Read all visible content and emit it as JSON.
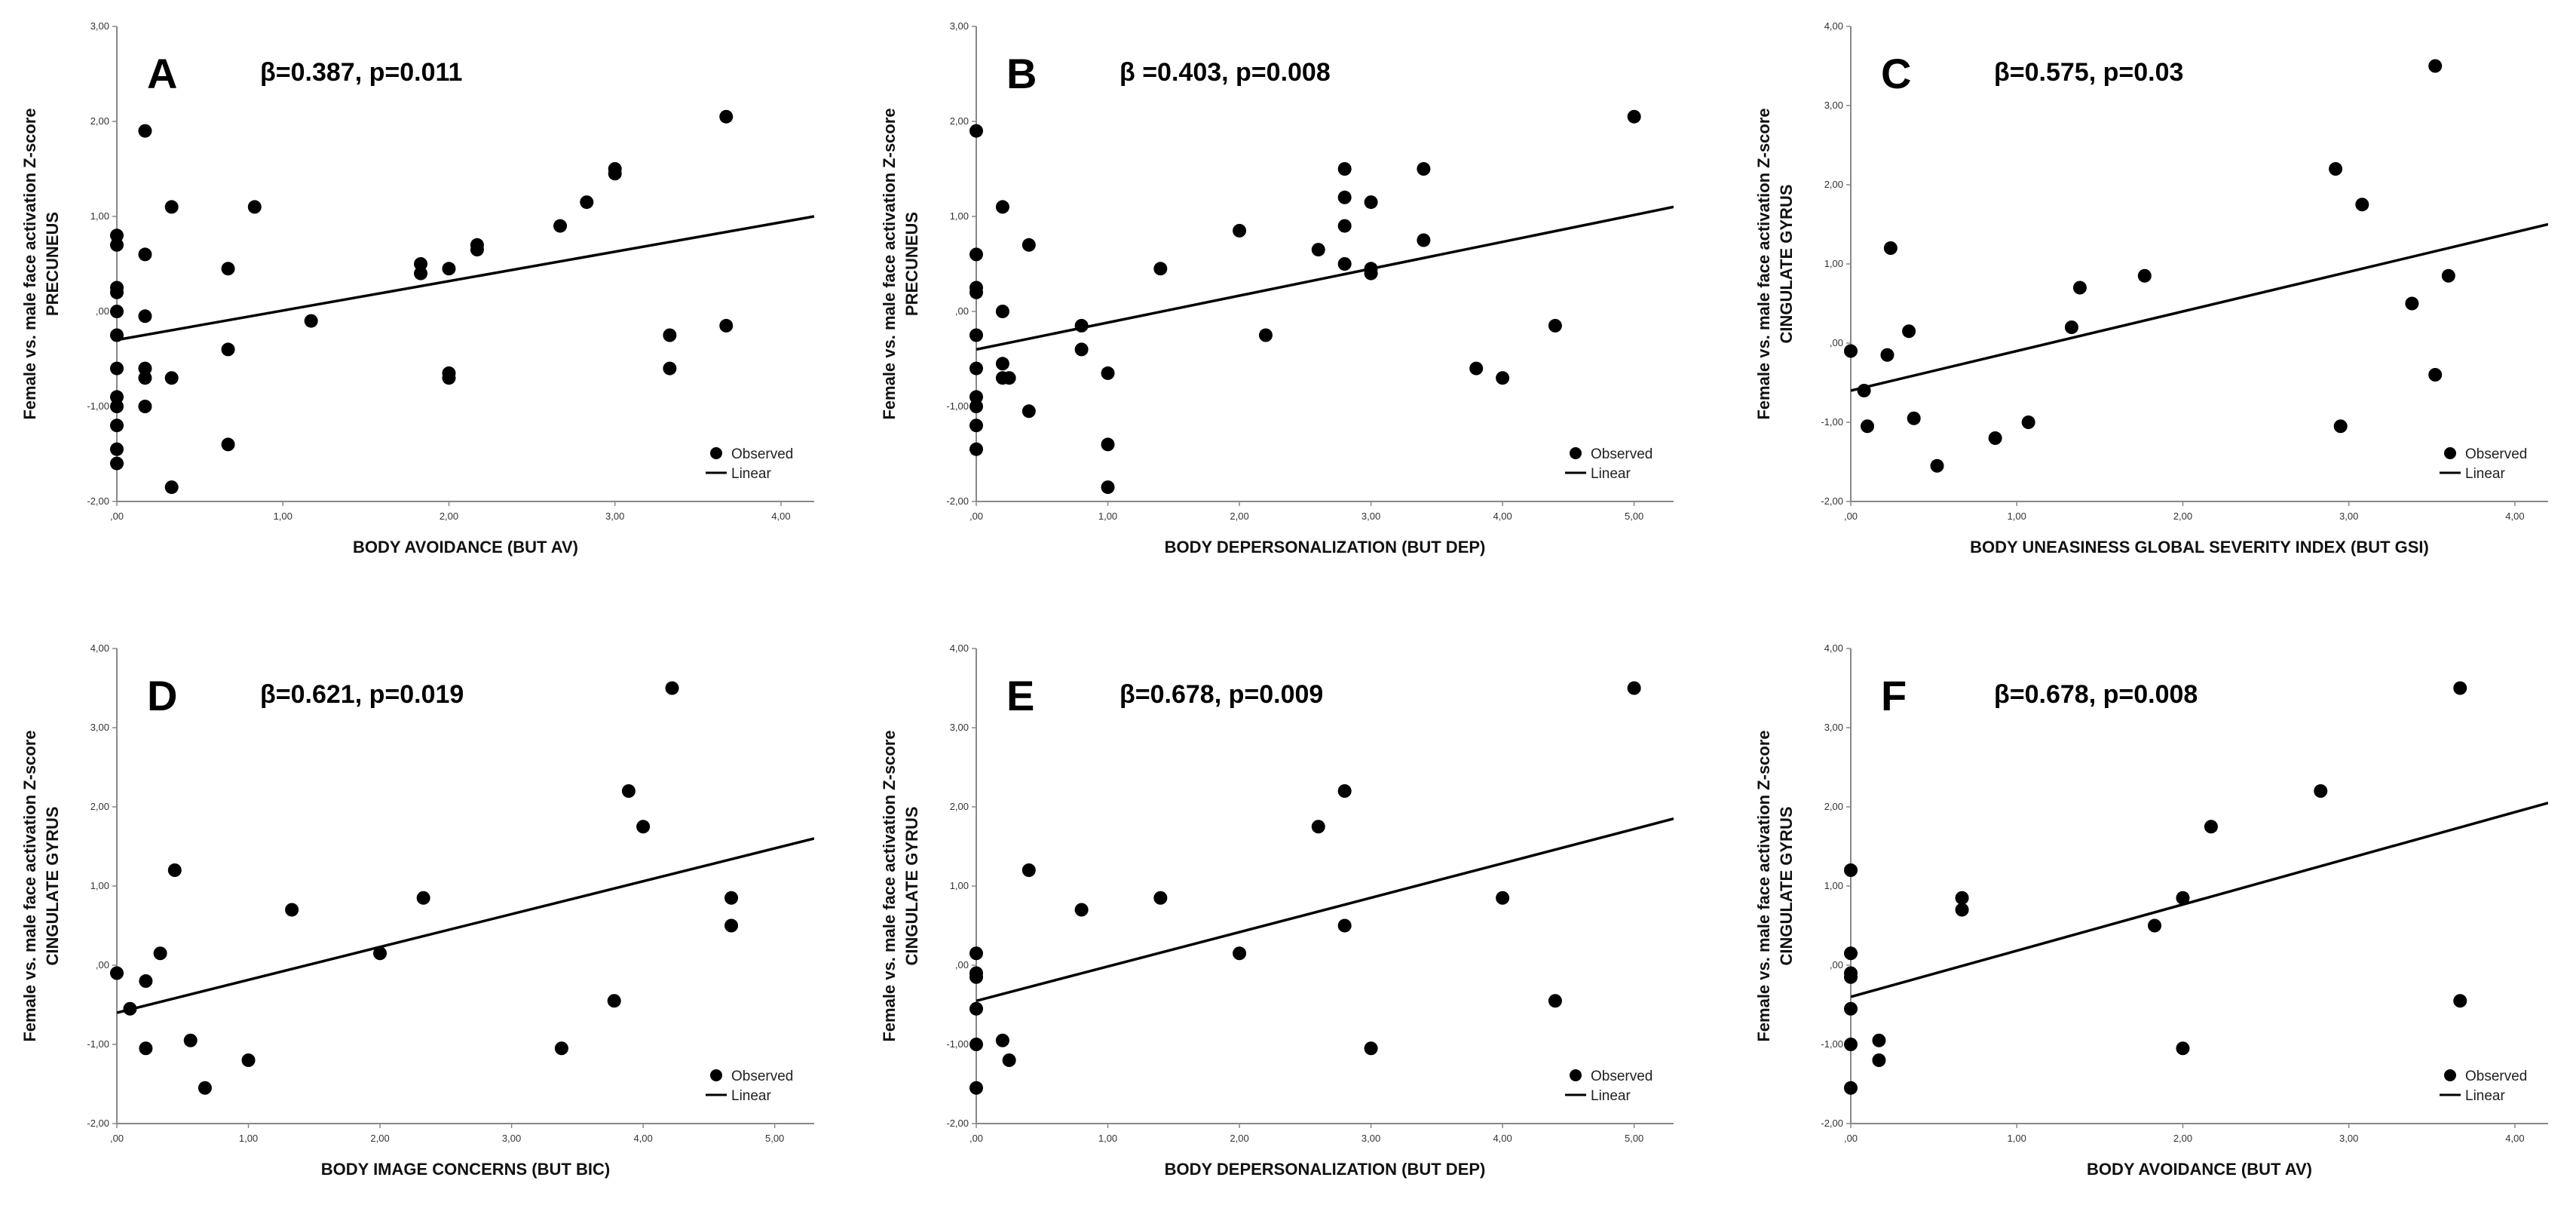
{
  "colors": {
    "marker": "#000000",
    "axis": "#888888",
    "line": "#000000"
  },
  "legend": {
    "observed": "Observed",
    "linear": "Linear"
  },
  "chart_data": [
    {
      "type": "scatter",
      "letter": "A",
      "stat": "β=0.387, p=0.011",
      "ylabel": [
        "Female vs. male face activation Z-score",
        "PRECUNEUS"
      ],
      "xlabel": "BODY AVOIDANCE (BUT AV)",
      "xlim": [
        0,
        4.2
      ],
      "ylim": [
        -2,
        3
      ],
      "xticks": [
        0,
        1,
        2,
        3,
        4
      ],
      "xtick_labels": [
        ",00",
        "1,00",
        "2,00",
        "3,00",
        "4,00"
      ],
      "yticks": [
        -2,
        -1,
        0,
        1,
        2,
        3
      ],
      "ytick_labels": [
        "-2,00",
        "-1,00",
        ",00",
        "1,00",
        "2,00",
        "3,00"
      ],
      "fit": [
        [
          0,
          -0.3
        ],
        [
          4.2,
          1.0
        ]
      ],
      "x": [
        0,
        0,
        0,
        0,
        0,
        0,
        0,
        0,
        0,
        0,
        0,
        0,
        0.17,
        0.17,
        0.17,
        0.17,
        0.17,
        0.17,
        0.33,
        0.33,
        0.33,
        0.67,
        0.67,
        0.67,
        0.83,
        1.17,
        1.83,
        1.83,
        2.0,
        2.0,
        2.0,
        2.17,
        2.17,
        2.67,
        2.83,
        3.0,
        3.0,
        3.33,
        3.33,
        3.67,
        3.67
      ],
      "y": [
        0.8,
        0.7,
        0.25,
        0.2,
        -0.25,
        -0.6,
        -0.9,
        -1.0,
        -1.2,
        -1.45,
        -1.6,
        0.0,
        1.9,
        0.6,
        -0.05,
        -0.6,
        -0.7,
        -1.0,
        1.1,
        -0.7,
        -1.85,
        0.45,
        -0.4,
        -1.4,
        1.1,
        -0.1,
        0.5,
        0.4,
        0.45,
        -0.65,
        -0.7,
        0.7,
        0.65,
        0.9,
        1.15,
        1.5,
        1.45,
        -0.25,
        -0.6,
        2.05,
        -0.15
      ]
    },
    {
      "type": "scatter",
      "letter": "B",
      "stat": "β =0.403, p=0.008",
      "ylabel": [
        "Female vs. male face activation Z-score",
        "PRECUNEUS"
      ],
      "xlabel": "BODY DEPERSONALIZATION (BUT DEP)",
      "xlim": [
        0,
        5.3
      ],
      "ylim": [
        -2,
        3
      ],
      "xticks": [
        0,
        1,
        2,
        3,
        4,
        5
      ],
      "xtick_labels": [
        ",00",
        "1,00",
        "2,00",
        "3,00",
        "4,00",
        "5,00"
      ],
      "yticks": [
        -2,
        -1,
        0,
        1,
        2,
        3
      ],
      "ytick_labels": [
        "-2,00",
        "-1,00",
        ",00",
        "1,00",
        "2,00",
        "3,00"
      ],
      "fit": [
        [
          0,
          -0.4
        ],
        [
          5.3,
          1.1
        ]
      ],
      "x": [
        0,
        0,
        0,
        0,
        0,
        0,
        0,
        0,
        0,
        0,
        0.2,
        0.2,
        0.2,
        0.2,
        0.25,
        0.4,
        0.4,
        0.8,
        0.8,
        1.0,
        1.0,
        1.0,
        1.4,
        2.0,
        2.2,
        2.6,
        2.8,
        2.8,
        2.8,
        2.8,
        3.0,
        3.0,
        3.0,
        3.4,
        3.4,
        3.8,
        4.0,
        4.4,
        5.0
      ],
      "y": [
        1.9,
        0.6,
        0.25,
        0.2,
        -0.25,
        -0.6,
        -0.9,
        -1.0,
        -1.2,
        -1.45,
        1.1,
        0.0,
        -0.55,
        -0.7,
        -0.7,
        0.7,
        -1.05,
        -0.15,
        -0.4,
        -0.65,
        -1.4,
        -1.85,
        0.45,
        0.85,
        -0.25,
        0.65,
        1.5,
        1.2,
        0.9,
        0.5,
        1.15,
        0.45,
        0.4,
        1.5,
        0.75,
        -0.6,
        -0.7,
        -0.15,
        2.05
      ]
    },
    {
      "type": "scatter",
      "letter": "C",
      "stat": "β=0.575, p=0.03",
      "ylabel": [
        "Female vs. male face activation Z-score",
        "CINGULATE GYRUS"
      ],
      "xlabel": "BODY UNEASINESS GLOBAL SEVERITY INDEX (BUT GSI)",
      "xlim": [
        0,
        4.2
      ],
      "ylim": [
        -2,
        4
      ],
      "xticks": [
        0,
        1,
        2,
        3,
        4
      ],
      "xtick_labels": [
        ",00",
        "1,00",
        "2,00",
        "3,00",
        "4,00"
      ],
      "yticks": [
        -2,
        -1,
        0,
        1,
        2,
        3,
        4
      ],
      "ytick_labels": [
        "-2,00",
        "-1,00",
        ",00",
        "1,00",
        "2,00",
        "3,00",
        "4,00"
      ],
      "fit": [
        [
          0,
          -0.6
        ],
        [
          4.2,
          1.5
        ]
      ],
      "x": [
        0.0,
        0.08,
        0.1,
        0.22,
        0.24,
        0.35,
        0.38,
        0.52,
        0.87,
        1.07,
        1.33,
        1.38,
        1.77,
        2.92,
        2.95,
        3.08,
        3.38,
        3.52,
        3.52,
        3.6
      ],
      "y": [
        -0.1,
        -0.6,
        -1.05,
        -0.15,
        1.2,
        0.15,
        -0.95,
        -1.55,
        -1.2,
        -1.0,
        0.2,
        0.7,
        0.85,
        2.2,
        -1.05,
        1.75,
        0.5,
        3.5,
        -0.4,
        0.85
      ]
    },
    {
      "type": "scatter",
      "letter": "D",
      "stat": "β=0.621, p=0.019",
      "ylabel": [
        "Female vs. male face activation Z-score",
        "CINGULATE GYRUS"
      ],
      "xlabel": "BODY IMAGE CONCERNS (BUT BIC)",
      "xlim": [
        0,
        5.3
      ],
      "ylim": [
        -2,
        4
      ],
      "xticks": [
        0,
        1,
        2,
        3,
        4,
        5
      ],
      "xtick_labels": [
        ",00",
        "1,00",
        "2,00",
        "3,00",
        "4,00",
        "5,00"
      ],
      "yticks": [
        -2,
        -1,
        0,
        1,
        2,
        3,
        4
      ],
      "ytick_labels": [
        "-2,00",
        "-1,00",
        ",00",
        "1,00",
        "2,00",
        "3,00",
        "4,00"
      ],
      "fit": [
        [
          0,
          -0.6
        ],
        [
          5.3,
          1.6
        ]
      ],
      "x": [
        0.0,
        0.1,
        0.22,
        0.22,
        0.33,
        0.44,
        0.56,
        0.67,
        1.0,
        1.33,
        2.0,
        2.33,
        3.38,
        3.78,
        3.89,
        4.0,
        4.22,
        4.67,
        4.67
      ],
      "y": [
        -0.1,
        -0.55,
        -0.2,
        -1.05,
        0.15,
        1.2,
        -0.95,
        -1.55,
        -1.2,
        0.7,
        0.15,
        0.85,
        -1.05,
        -0.45,
        2.2,
        1.75,
        3.5,
        0.85,
        0.5
      ]
    },
    {
      "type": "scatter",
      "letter": "E",
      "stat": "β=0.678, p=0.009",
      "ylabel": [
        "Female vs. male face activation Z-score",
        "CINGULATE GYRUS"
      ],
      "xlabel": "BODY DEPERSONALIZATION (BUT DEP)",
      "xlim": [
        0,
        5.3
      ],
      "ylim": [
        -2,
        4
      ],
      "xticks": [
        0,
        1,
        2,
        3,
        4,
        5
      ],
      "xtick_labels": [
        ",00",
        "1,00",
        "2,00",
        "3,00",
        "4,00",
        "5,00"
      ],
      "yticks": [
        -2,
        -1,
        0,
        1,
        2,
        3,
        4
      ],
      "ytick_labels": [
        "-2,00",
        "-1,00",
        ",00",
        "1,00",
        "2,00",
        "3,00",
        "4,00"
      ],
      "fit": [
        [
          0,
          -0.45
        ],
        [
          5.3,
          1.85
        ]
      ],
      "x": [
        0,
        0,
        0,
        0,
        0,
        0,
        0.2,
        0.25,
        0.4,
        0.8,
        1.4,
        2.0,
        2.6,
        2.8,
        2.8,
        3.0,
        4.0,
        4.4,
        5.0
      ],
      "y": [
        0.15,
        -0.1,
        -0.15,
        -0.55,
        -1.0,
        -1.55,
        -0.95,
        -1.2,
        1.2,
        0.7,
        0.85,
        0.15,
        1.75,
        2.2,
        0.5,
        -1.05,
        0.85,
        -0.45,
        3.5
      ]
    },
    {
      "type": "scatter",
      "letter": "F",
      "stat": "β=0.678, p=0.008",
      "ylabel": [
        "Female vs. male face activation Z-score",
        "CINGULATE GYRUS"
      ],
      "xlabel": "BODY AVOIDANCE (BUT AV)",
      "xlim": [
        0,
        4.2
      ],
      "ylim": [
        -2,
        4
      ],
      "xticks": [
        0,
        1,
        2,
        3,
        4
      ],
      "xtick_labels": [
        ",00",
        "1,00",
        "2,00",
        "3,00",
        "4,00"
      ],
      "yticks": [
        -2,
        -1,
        0,
        1,
        2,
        3,
        4
      ],
      "ytick_labels": [
        "-2,00",
        "-1,00",
        ",00",
        "1,00",
        "2,00",
        "3,00",
        "4,00"
      ],
      "fit": [
        [
          0,
          -0.4
        ],
        [
          4.2,
          2.05
        ]
      ],
      "x": [
        0,
        0,
        0,
        0,
        0,
        0,
        0,
        0.17,
        0.17,
        0.67,
        0.67,
        1.83,
        2.0,
        2.0,
        2.17,
        2.83,
        3.67,
        3.67
      ],
      "y": [
        1.2,
        0.15,
        -0.1,
        -0.15,
        -0.55,
        -1.0,
        -1.55,
        -0.95,
        -1.2,
        0.85,
        0.7,
        0.5,
        0.85,
        -1.05,
        1.75,
        2.2,
        3.5,
        -0.45
      ]
    }
  ]
}
